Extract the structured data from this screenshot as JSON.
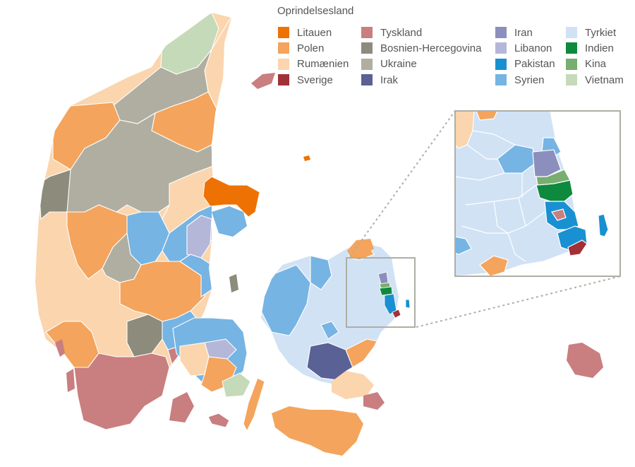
{
  "legend": {
    "title": "Oprindelsesland",
    "columns": [
      [
        {
          "label": "Litauen",
          "color": "#EE7203"
        },
        {
          "label": "Polen",
          "color": "#F4A45C"
        },
        {
          "label": "Rumænien",
          "color": "#FAD5AE"
        },
        {
          "label": "Sverige",
          "color": "#A23037"
        }
      ],
      [
        {
          "label": "Tyskland",
          "color": "#C97E80"
        },
        {
          "label": "Bosnien-Hercegovina",
          "color": "#8D8B7C"
        },
        {
          "label": "Ukraine",
          "color": "#B0AEA1"
        },
        {
          "label": "Irak",
          "color": "#5A6195"
        }
      ],
      [
        {
          "label": "Iran",
          "color": "#8C8FBD"
        },
        {
          "label": "Libanon",
          "color": "#B5B7D8"
        },
        {
          "label": "Pakistan",
          "color": "#1990D2"
        },
        {
          "label": "Syrien",
          "color": "#76B4E3"
        }
      ],
      [
        {
          "label": "Tyrkiet",
          "color": "#D1E2F5"
        },
        {
          "label": "Indien",
          "color": "#0D8A3E"
        },
        {
          "label": "Kina",
          "color": "#78AE6F"
        },
        {
          "label": "Vietnam",
          "color": "#C5DAB8"
        }
      ]
    ]
  },
  "inset": {
    "border_color": "#AFAEA4"
  }
}
